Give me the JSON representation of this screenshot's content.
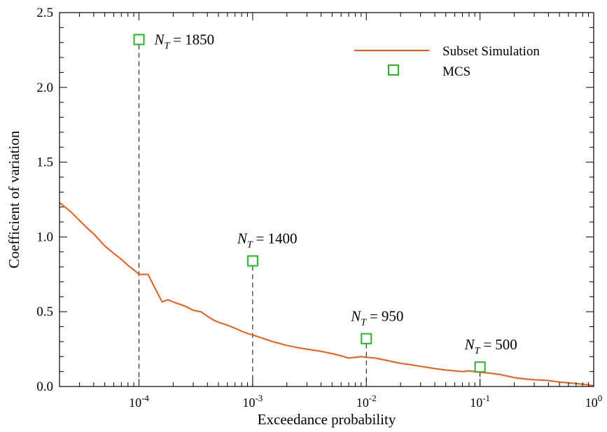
{
  "chart_data": {
    "type": "line",
    "title": "",
    "xlabel": "Exceedance probability",
    "ylabel": "Coefficient of variation",
    "x_scale": "log",
    "xlim": [
      2e-05,
      1
    ],
    "ylim": [
      0,
      2.5
    ],
    "grid": false,
    "legend_position": "top-right",
    "x_ticks": [
      {
        "value": 0.0001,
        "base": "10",
        "exp": "-4"
      },
      {
        "value": 0.001,
        "base": "10",
        "exp": "-3"
      },
      {
        "value": 0.01,
        "base": "10",
        "exp": "-2"
      },
      {
        "value": 0.1,
        "base": "10",
        "exp": "-1"
      },
      {
        "value": 1,
        "base": "10",
        "exp": "0"
      }
    ],
    "y_ticks": [
      {
        "value": 0,
        "label": "0.0"
      },
      {
        "value": 0.5,
        "label": "0.5"
      },
      {
        "value": 1.0,
        "label": "1.0"
      },
      {
        "value": 1.5,
        "label": "1.5"
      },
      {
        "value": 2.0,
        "label": "2.0"
      },
      {
        "value": 2.5,
        "label": "2.5"
      }
    ],
    "series": [
      {
        "name": "Subset Simulation",
        "color": "#f05a14",
        "points": [
          [
            2e-05,
            1.23
          ],
          [
            2.5e-05,
            1.17
          ],
          [
            3e-05,
            1.11
          ],
          [
            3.5e-05,
            1.06
          ],
          [
            4e-05,
            1.02
          ],
          [
            5e-05,
            0.94
          ],
          [
            6e-05,
            0.89
          ],
          [
            7e-05,
            0.85
          ],
          [
            8e-05,
            0.81
          ],
          [
            9e-05,
            0.78
          ],
          [
            0.0001,
            0.75
          ],
          [
            0.00012,
            0.75
          ],
          [
            0.00014,
            0.65
          ],
          [
            0.00016,
            0.565
          ],
          [
            0.00018,
            0.58
          ],
          [
            0.0002,
            0.565
          ],
          [
            0.00025,
            0.54
          ],
          [
            0.0003,
            0.51
          ],
          [
            0.00035,
            0.5
          ],
          [
            0.0004,
            0.47
          ],
          [
            0.00045,
            0.445
          ],
          [
            0.0005,
            0.43
          ],
          [
            0.0006,
            0.41
          ],
          [
            0.0007,
            0.39
          ],
          [
            0.0008,
            0.37
          ],
          [
            0.0009,
            0.355
          ],
          [
            0.001,
            0.345
          ],
          [
            0.0012,
            0.325
          ],
          [
            0.0015,
            0.3
          ],
          [
            0.002,
            0.275
          ],
          [
            0.0025,
            0.26
          ],
          [
            0.003,
            0.25
          ],
          [
            0.004,
            0.235
          ],
          [
            0.005,
            0.22
          ],
          [
            0.006,
            0.205
          ],
          [
            0.007,
            0.19
          ],
          [
            0.008,
            0.195
          ],
          [
            0.009,
            0.2
          ],
          [
            0.01,
            0.195
          ],
          [
            0.012,
            0.19
          ],
          [
            0.015,
            0.175
          ],
          [
            0.02,
            0.155
          ],
          [
            0.025,
            0.145
          ],
          [
            0.03,
            0.135
          ],
          [
            0.04,
            0.12
          ],
          [
            0.05,
            0.11
          ],
          [
            0.06,
            0.105
          ],
          [
            0.07,
            0.1
          ],
          [
            0.08,
            0.105
          ],
          [
            0.09,
            0.1
          ],
          [
            0.1,
            0.095
          ],
          [
            0.12,
            0.09
          ],
          [
            0.15,
            0.08
          ],
          [
            0.2,
            0.06
          ],
          [
            0.25,
            0.05
          ],
          [
            0.3,
            0.045
          ],
          [
            0.4,
            0.04
          ],
          [
            0.5,
            0.03
          ],
          [
            0.6,
            0.025
          ],
          [
            0.7,
            0.02
          ],
          [
            0.8,
            0.015
          ],
          [
            0.9,
            0.01
          ],
          [
            1.0,
            0.005
          ]
        ]
      }
    ],
    "mcs": {
      "name": "MCS",
      "color": "#22bb22",
      "points": [
        {
          "x": 0.0001,
          "y": 2.32,
          "n_t": "1850"
        },
        {
          "x": 0.001,
          "y": 0.84,
          "n_t": "1400"
        },
        {
          "x": 0.01,
          "y": 0.32,
          "n_t": "950"
        },
        {
          "x": 0.1,
          "y": 0.13,
          "n_t": "500"
        }
      ]
    },
    "annotation_prefix": "N",
    "annotation_subscript": "T",
    "annotation_operator": "="
  }
}
